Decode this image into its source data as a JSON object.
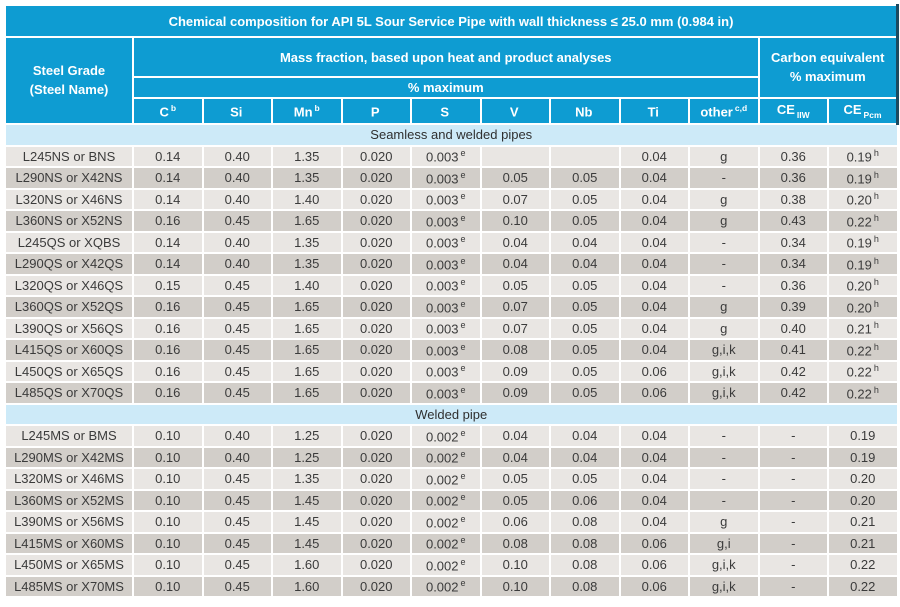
{
  "title": "Chemical composition for API 5L Sour Service Pipe with wall thickness ≤ 25.0 mm (0.984 in)",
  "header": {
    "steel_grade_line1": "Steel Grade",
    "steel_grade_line2": "(Steel Name)",
    "mass_fraction": "Mass fraction, based upon heat and product analyses",
    "pct_maximum": "% maximum",
    "carbon_equivalent_line1": "Carbon equivalent",
    "carbon_equivalent_line2": "% maximum",
    "element_cols": [
      {
        "text": "C",
        "sup": "b"
      },
      {
        "text": "Si",
        "sup": ""
      },
      {
        "text": "Mn",
        "sup": "b"
      },
      {
        "text": "P",
        "sup": ""
      },
      {
        "text": "S",
        "sup": ""
      },
      {
        "text": "V",
        "sup": ""
      },
      {
        "text": "Nb",
        "sup": ""
      },
      {
        "text": "Ti",
        "sup": ""
      },
      {
        "text": "other",
        "sup": "c,d"
      }
    ],
    "ce_cols": [
      {
        "text": "CE",
        "sub": "IIW"
      },
      {
        "text": "CE",
        "sub": "Pcm"
      }
    ]
  },
  "colors": {
    "header_blue": "#0E9CD2",
    "section_band_blue": "#CDEAF8",
    "row_light": "#E9E6E3",
    "row_dark": "#D2CEC9",
    "header_text": "#FFFFFF",
    "data_text": "#3B3B3B",
    "navy_edge": "#1C4A60"
  },
  "sections": [
    {
      "label": "Seamless and welded pipes",
      "rows": [
        {
          "name": "L245NS or BNS",
          "cells": [
            "0.14",
            "0.40",
            "1.35",
            "0.020",
            "0.003^e",
            "",
            "",
            "0.04",
            "g",
            "0.36",
            "0.19^h"
          ]
        },
        {
          "name": "L290NS or X42NS",
          "cells": [
            "0.14",
            "0.40",
            "1.35",
            "0.020",
            "0.003^e",
            "0.05",
            "0.05",
            "0.04",
            "-",
            "0.36",
            "0.19^h"
          ]
        },
        {
          "name": "L320NS or X46NS",
          "cells": [
            "0.14",
            "0.40",
            "1.40",
            "0.020",
            "0.003^e",
            "0.07",
            "0.05",
            "0.04",
            "g",
            "0.38",
            "0.20^h"
          ]
        },
        {
          "name": "L360NS or X52NS",
          "cells": [
            "0.16",
            "0.45",
            "1.65",
            "0.020",
            "0.003^e",
            "0.10",
            "0.05",
            "0.04",
            "g",
            "0.43",
            "0.22^h"
          ]
        },
        {
          "name": "L245QS or XQBS",
          "cells": [
            "0.14",
            "0.40",
            "1.35",
            "0.020",
            "0.003^e",
            "0.04",
            "0.04",
            "0.04",
            "-",
            "0.34",
            "0.19^h"
          ]
        },
        {
          "name": "L290QS or X42QS",
          "cells": [
            "0.14",
            "0.40",
            "1.35",
            "0.020",
            "0.003^e",
            "0.04",
            "0.04",
            "0.04",
            "-",
            "0.34",
            "0.19^h"
          ]
        },
        {
          "name": "L320QS or X46QS",
          "cells": [
            "0.15",
            "0.45",
            "1.40",
            "0.020",
            "0.003^e",
            "0.05",
            "0.05",
            "0.04",
            "-",
            "0.36",
            "0.20^h"
          ]
        },
        {
          "name": "L360QS or X52QS",
          "cells": [
            "0.16",
            "0.45",
            "1.65",
            "0.020",
            "0.003^e",
            "0.07",
            "0.05",
            "0.04",
            "g",
            "0.39",
            "0.20^h"
          ]
        },
        {
          "name": "L390QS or X56QS",
          "cells": [
            "0.16",
            "0.45",
            "1.65",
            "0.020",
            "0.003^e",
            "0.07",
            "0.05",
            "0.04",
            "g",
            "0.40",
            "0.21^h"
          ]
        },
        {
          "name": "L415QS or X60QS",
          "cells": [
            "0.16",
            "0.45",
            "1.65",
            "0.020",
            "0.003^e",
            "0.08",
            "0.05",
            "0.04",
            "g,i,k",
            "0.41",
            "0.22^h"
          ]
        },
        {
          "name": "L450QS or X65QS",
          "cells": [
            "0.16",
            "0.45",
            "1.65",
            "0.020",
            "0.003^e",
            "0.09",
            "0.05",
            "0.06",
            "g,i,k",
            "0.42",
            "0.22^h"
          ]
        },
        {
          "name": "L485QS or X70QS",
          "cells": [
            "0.16",
            "0.45",
            "1.65",
            "0.020",
            "0.003^e",
            "0.09",
            "0.05",
            "0.06",
            "g,i,k",
            "0.42",
            "0.22^h"
          ]
        }
      ]
    },
    {
      "label": "Welded pipe",
      "rows": [
        {
          "name": "L245MS or BMS",
          "cells": [
            "0.10",
            "0.40",
            "1.25",
            "0.020",
            "0.002^e",
            "0.04",
            "0.04",
            "0.04",
            "-",
            "-",
            "0.19"
          ]
        },
        {
          "name": "L290MS or X42MS",
          "cells": [
            "0.10",
            "0.40",
            "1.25",
            "0.020",
            "0.002^e",
            "0.04",
            "0.04",
            "0.04",
            "-",
            "-",
            "0.19"
          ]
        },
        {
          "name": "L320MS or X46MS",
          "cells": [
            "0.10",
            "0.45",
            "1.35",
            "0.020",
            "0.002^e",
            "0.05",
            "0.05",
            "0.04",
            "-",
            "-",
            "0.20"
          ]
        },
        {
          "name": "L360MS or X52MS",
          "cells": [
            "0.10",
            "0.45",
            "1.45",
            "0.020",
            "0.002^e",
            "0.05",
            "0.06",
            "0.04",
            "-",
            "-",
            "0.20"
          ]
        },
        {
          "name": "L390MS or X56MS",
          "cells": [
            "0.10",
            "0.45",
            "1.45",
            "0.020",
            "0.002^e",
            "0.06",
            "0.08",
            "0.04",
            "g",
            "-",
            "0.21"
          ]
        },
        {
          "name": "L415MS or X60MS",
          "cells": [
            "0.10",
            "0.45",
            "1.45",
            "0.020",
            "0.002^e",
            "0.08",
            "0.08",
            "0.06",
            "g,i",
            "-",
            "0.21"
          ]
        },
        {
          "name": "L450MS or X65MS",
          "cells": [
            "0.10",
            "0.45",
            "1.60",
            "0.020",
            "0.002^e",
            "0.10",
            "0.08",
            "0.06",
            "g,i,k",
            "-",
            "0.22"
          ]
        },
        {
          "name": "L485MS or X70MS",
          "cells": [
            "0.10",
            "0.45",
            "1.60",
            "0.020",
            "0.002^e",
            "0.10",
            "0.08",
            "0.06",
            "g,i,k",
            "-",
            "0.22"
          ]
        }
      ]
    }
  ]
}
